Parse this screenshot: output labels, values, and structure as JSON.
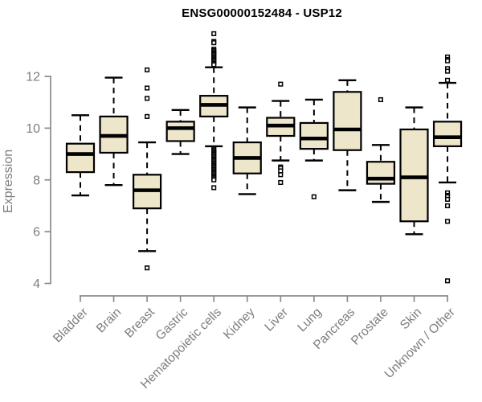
{
  "chart_data": {
    "type": "boxplot",
    "title": "ENSG00000152484 - USP12",
    "xlabel": "",
    "ylabel": "Expression",
    "axis_range": [
      4,
      12
    ],
    "yticks": [
      4,
      6,
      8,
      10,
      12
    ],
    "grid": false,
    "legend": null,
    "categories": [
      "Bladder",
      "Brain",
      "Breast",
      "Gastric",
      "Hematopoietic cells",
      "Kidney",
      "Liver",
      "Lung",
      "Pancreas",
      "Prostate",
      "Skin",
      "Unknown / Other"
    ],
    "boxes": [
      {
        "category": "Bladder",
        "low": 7.4,
        "q1": 8.3,
        "median": 9.0,
        "q3": 9.4,
        "high": 10.5,
        "outliers": []
      },
      {
        "category": "Brain",
        "low": 7.8,
        "q1": 9.05,
        "median": 9.7,
        "q3": 10.45,
        "high": 11.95,
        "outliers": []
      },
      {
        "category": "Breast",
        "low": 5.25,
        "q1": 6.9,
        "median": 7.6,
        "q3": 8.2,
        "high": 9.45,
        "outliers": [
          12.25,
          11.55,
          11.15,
          10.45,
          4.6
        ]
      },
      {
        "category": "Gastric",
        "low": 9.0,
        "q1": 9.5,
        "median": 10.0,
        "q3": 10.25,
        "high": 10.7,
        "outliers": []
      },
      {
        "category": "Hematopoietic cells",
        "low": 9.3,
        "q1": 10.45,
        "median": 10.9,
        "q3": 11.25,
        "high": 12.35,
        "outliers": [
          13.65,
          13.35,
          13.3,
          13.05,
          13.0,
          12.95,
          12.9,
          12.85,
          12.8,
          12.75,
          12.7,
          12.65,
          12.6,
          12.55,
          12.5,
          12.45,
          9.2,
          9.15,
          9.1,
          9.05,
          9.0,
          8.95,
          8.9,
          8.85,
          8.8,
          8.75,
          8.7,
          8.65,
          8.6,
          8.55,
          8.5,
          8.45,
          8.4,
          8.35,
          8.3,
          8.25,
          8.2,
          8.15,
          8.1,
          8.05,
          8.0,
          7.7
        ]
      },
      {
        "category": "Kidney",
        "low": 7.45,
        "q1": 8.25,
        "median": 8.85,
        "q3": 9.45,
        "high": 10.8,
        "outliers": []
      },
      {
        "category": "Liver",
        "low": 8.75,
        "q1": 9.7,
        "median": 10.1,
        "q3": 10.4,
        "high": 11.05,
        "outliers": [
          11.7,
          8.5,
          8.45,
          8.35,
          8.2,
          7.9
        ]
      },
      {
        "category": "Lung",
        "low": 8.75,
        "q1": 9.2,
        "median": 9.6,
        "q3": 10.2,
        "high": 11.1,
        "outliers": [
          7.35
        ]
      },
      {
        "category": "Pancreas",
        "low": 7.6,
        "q1": 9.15,
        "median": 9.95,
        "q3": 11.4,
        "high": 11.85,
        "outliers": []
      },
      {
        "category": "Prostate",
        "low": 7.15,
        "q1": 7.85,
        "median": 8.05,
        "q3": 8.7,
        "high": 9.35,
        "outliers": [
          11.1
        ]
      },
      {
        "category": "Skin",
        "low": 5.9,
        "q1": 6.4,
        "median": 8.1,
        "q3": 9.95,
        "high": 10.8,
        "outliers": []
      },
      {
        "category": "Unknown / Other",
        "low": 7.9,
        "q1": 9.3,
        "median": 9.65,
        "q3": 10.25,
        "high": 11.75,
        "outliers": [
          12.75,
          12.65,
          12.6,
          12.3,
          12.2,
          11.85,
          7.5,
          7.4,
          7.35,
          7.25,
          7.0,
          6.4,
          4.1
        ]
      }
    ],
    "colors": {
      "box_fill": "#EDE6CB",
      "box_stroke": "#000000",
      "median": "#000000",
      "whisker": "#000000",
      "outlier_stroke": "#000000",
      "outlier_fill": "#FFFFFF",
      "axis": "#8A8A8A",
      "tick_text": "#7D7D7D",
      "title_text": "#000000",
      "background": "#FFFFFF"
    }
  }
}
